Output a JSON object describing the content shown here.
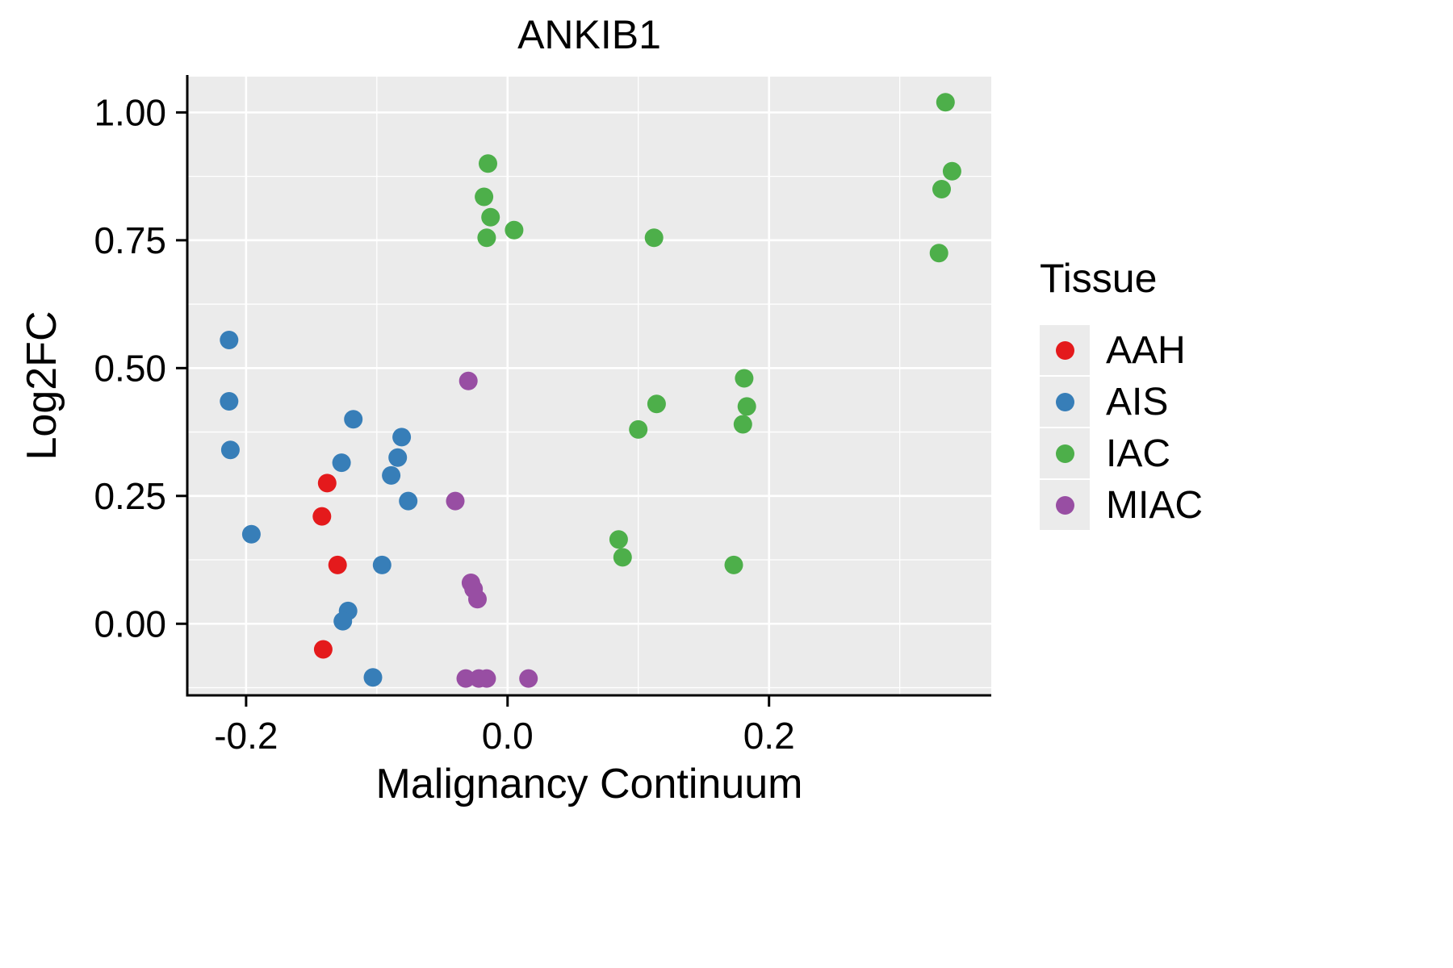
{
  "title": "ANKIB1",
  "axes": {
    "x": {
      "label": "Malignancy Continuum",
      "tick_values": [
        -0.2,
        0.0,
        0.2
      ],
      "tick_labels": [
        "-0.2",
        "0.0",
        "0.2"
      ],
      "minor_tick_values": [
        -0.1,
        0.1,
        0.3
      ],
      "lim": [
        -0.245,
        0.37
      ]
    },
    "y": {
      "label": "Log2FC",
      "tick_values": [
        0.0,
        0.25,
        0.5,
        0.75,
        1.0
      ],
      "tick_labels": [
        "0.00",
        "0.25",
        "0.50",
        "0.75",
        "1.00"
      ],
      "minor_tick_values": [
        -0.125,
        0.125,
        0.375,
        0.625,
        0.875
      ],
      "lim": [
        -0.14,
        1.07
      ]
    }
  },
  "legend": {
    "title": "Tissue",
    "entries": [
      {
        "label": "AAH",
        "color": "#E41A1C"
      },
      {
        "label": "AIS",
        "color": "#377EB8"
      },
      {
        "label": "IAC",
        "color": "#4DAF4A"
      },
      {
        "label": "MIAC",
        "color": "#984EA3"
      }
    ]
  },
  "colors": {
    "panel_background": "#EBEBEB",
    "gridline": "#FFFFFF",
    "axis_line": "#000000",
    "legend_key_background": "#EBEBEB",
    "text": "#000000"
  },
  "chart_data": {
    "type": "scatter",
    "title": "ANKIB1",
    "xlabel": "Malignancy Continuum",
    "ylabel": "Log2FC",
    "xlim": [
      -0.245,
      0.37
    ],
    "ylim": [
      -0.14,
      1.07
    ],
    "grid": true,
    "legend_position": "right",
    "point_radius_px": 11.5,
    "series": [
      {
        "name": "AAH",
        "color": "#E41A1C",
        "points": [
          [
            -0.138,
            0.275
          ],
          [
            -0.142,
            0.21
          ],
          [
            -0.13,
            0.115
          ],
          [
            -0.141,
            -0.05
          ]
        ]
      },
      {
        "name": "AIS",
        "color": "#377EB8",
        "points": [
          [
            -0.213,
            0.555
          ],
          [
            -0.213,
            0.435
          ],
          [
            -0.212,
            0.34
          ],
          [
            -0.196,
            0.175
          ],
          [
            -0.127,
            0.315
          ],
          [
            -0.118,
            0.4
          ],
          [
            -0.122,
            0.025
          ],
          [
            -0.126,
            0.005
          ],
          [
            -0.096,
            0.115
          ],
          [
            -0.089,
            0.29
          ],
          [
            -0.084,
            0.325
          ],
          [
            -0.081,
            0.365
          ],
          [
            -0.076,
            0.24
          ],
          [
            -0.103,
            -0.105
          ]
        ]
      },
      {
        "name": "IAC",
        "color": "#4DAF4A",
        "points": [
          [
            -0.015,
            0.9
          ],
          [
            -0.018,
            0.835
          ],
          [
            -0.013,
            0.795
          ],
          [
            -0.016,
            0.755
          ],
          [
            0.005,
            0.77
          ],
          [
            0.112,
            0.755
          ],
          [
            0.335,
            1.02
          ],
          [
            0.34,
            0.885
          ],
          [
            0.332,
            0.85
          ],
          [
            0.33,
            0.725
          ],
          [
            0.181,
            0.48
          ],
          [
            0.183,
            0.425
          ],
          [
            0.18,
            0.39
          ],
          [
            0.114,
            0.43
          ],
          [
            0.1,
            0.38
          ],
          [
            0.085,
            0.165
          ],
          [
            0.088,
            0.13
          ],
          [
            0.173,
            0.115
          ]
        ]
      },
      {
        "name": "MIAC",
        "color": "#984EA3",
        "points": [
          [
            -0.03,
            0.475
          ],
          [
            -0.04,
            0.24
          ],
          [
            -0.028,
            0.08
          ],
          [
            -0.026,
            0.068
          ],
          [
            -0.023,
            0.048
          ],
          [
            -0.032,
            -0.107
          ],
          [
            -0.022,
            -0.107
          ],
          [
            -0.016,
            -0.107
          ],
          [
            0.016,
            -0.107
          ]
        ]
      }
    ]
  }
}
